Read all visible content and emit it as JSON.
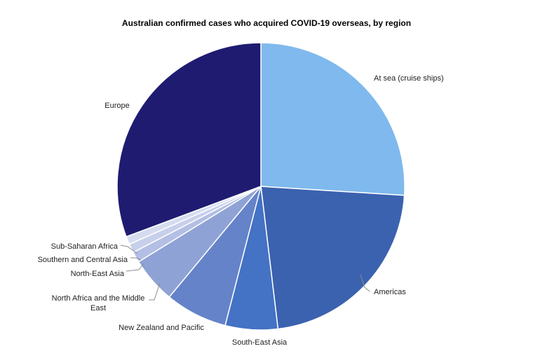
{
  "chart_data": {
    "type": "pie",
    "title": "Australian confirmed cases who acquired COVID-19 overseas, by region",
    "slices": [
      {
        "label": "At sea (cruise ships)",
        "value": 26.0,
        "color": "#7FB9ED"
      },
      {
        "label": "Americas",
        "value": 22.1,
        "color": "#3B62AF"
      },
      {
        "label": "South-East Asia",
        "value": 5.9,
        "color": "#4472C4"
      },
      {
        "label": "New Zealand and Pacific",
        "value": 7.0,
        "color": "#6583C9"
      },
      {
        "label": "North Africa and the Middle East",
        "value": 5.2,
        "color": "#8FA2D5"
      },
      {
        "label": "North-East Asia",
        "value": 1.2,
        "color": "#B3BFE4"
      },
      {
        "label": "Southern and Central Asia",
        "value": 1.0,
        "color": "#C7D0EB"
      },
      {
        "label": "Sub-Saharan Africa",
        "value": 0.9,
        "color": "#D6DCF0"
      },
      {
        "label": "Europe",
        "value": 30.7,
        "color": "#1F1B71"
      }
    ]
  }
}
